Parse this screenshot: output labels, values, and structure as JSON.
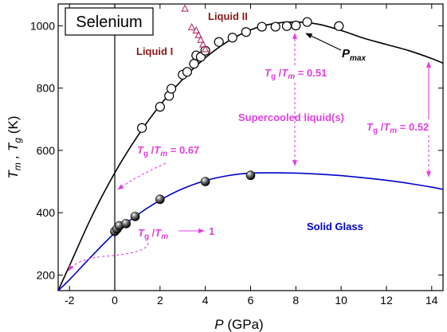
{
  "chart_data": {
    "type": "scatter",
    "title": "Selenium",
    "xlabel": "P",
    "xunit": "(GPa)",
    "ylabel_parts": [
      "T",
      "m",
      " , T",
      "g",
      " (K)"
    ],
    "xlim": [
      -2.5,
      14.5
    ],
    "ylim": [
      150,
      1070
    ],
    "xticks": [
      -2,
      0,
      2,
      4,
      6,
      8,
      10,
      12,
      14
    ],
    "yticks": [
      200,
      400,
      600,
      800,
      1000
    ],
    "grid": false,
    "series": [
      {
        "role": "melting-points",
        "marker": "open-circle",
        "points": [
          [
            1.2,
            672
          ],
          [
            2.0,
            740
          ],
          [
            2.4,
            775
          ],
          [
            2.5,
            798
          ],
          [
            3.0,
            843
          ],
          [
            3.2,
            852
          ],
          [
            3.5,
            878
          ],
          [
            3.6,
            905
          ],
          [
            3.8,
            900
          ],
          [
            4.0,
            920
          ],
          [
            4.6,
            948
          ],
          [
            5.2,
            962
          ],
          [
            5.8,
            980
          ],
          [
            6.5,
            997
          ],
          [
            7.1,
            997
          ],
          [
            7.6,
            999
          ],
          [
            8.0,
            1001
          ],
          [
            8.5,
            1012
          ],
          [
            9.9,
            999
          ]
        ]
      },
      {
        "role": "glass-transition",
        "marker": "filled-sphere",
        "points": [
          [
            0.0,
            340
          ],
          [
            0.1,
            348
          ],
          [
            0.2,
            358
          ],
          [
            0.5,
            365
          ],
          [
            0.9,
            388
          ],
          [
            2.0,
            443
          ],
          [
            4.0,
            500
          ],
          [
            6.0,
            520
          ]
        ]
      },
      {
        "role": "liquid-II",
        "marker": "open-triangle",
        "points": [
          [
            3.1,
            1055
          ],
          [
            3.4,
            995
          ],
          [
            3.6,
            985
          ],
          [
            3.7,
            970
          ],
          [
            3.8,
            955
          ],
          [
            3.9,
            940
          ],
          [
            4.0,
            925
          ]
        ]
      }
    ],
    "curves": [
      {
        "role": "melting-fit",
        "x": [
          -2.5,
          -2,
          -1,
          0,
          1,
          2,
          3,
          4,
          5,
          6,
          7,
          8,
          9,
          10,
          11,
          12,
          13,
          14,
          14.5
        ],
        "y": [
          150,
          230,
          390,
          528,
          645,
          745,
          828,
          897,
          950,
          987,
          1007,
          1012,
          1005,
          985,
          960,
          940,
          920,
          895,
          880
        ]
      },
      {
        "role": "glass-fit",
        "x": [
          -2.5,
          -2,
          -1,
          0,
          1,
          2,
          3,
          4,
          5,
          6,
          7,
          8,
          9,
          10,
          11,
          12,
          13,
          14,
          14.5
        ],
        "y": [
          150,
          185,
          262,
          335,
          393,
          440,
          477,
          503,
          519,
          527,
          528,
          527,
          524,
          519,
          512,
          504,
          494,
          482,
          475
        ]
      }
    ],
    "annotations": {
      "liquid1": "Liquid I",
      "liquid2": "Liquid II",
      "pmax": "P",
      "pmax_sub": "max",
      "ratio051": {
        "t": "T",
        "g": "g",
        "slash": " /",
        "m": "T",
        "msub": "m",
        "val": " = 0.51"
      },
      "ratio052": {
        "t": "T",
        "g": "g",
        "slash": " /",
        "m": "T",
        "msub": "m",
        "val": " = 0.52"
      },
      "ratio067": {
        "t": "T",
        "g": "g",
        "slash": " /",
        "m": "T",
        "msub": "m",
        "val": " = 0.67"
      },
      "ratio1": {
        "t": "T",
        "g": "g",
        "slash": " /",
        "m": "T",
        "msub": "m",
        "val": "1"
      },
      "supercooled": "Supercooled liquid(s)",
      "solidglass": "Solid Glass"
    },
    "colors": {
      "melting_curve": "#000000",
      "glass_curve": "#0000cc",
      "annotation": "#e040e0",
      "liquid_labels": "#8b1a1a",
      "solid_glass": "#0000cc"
    }
  }
}
